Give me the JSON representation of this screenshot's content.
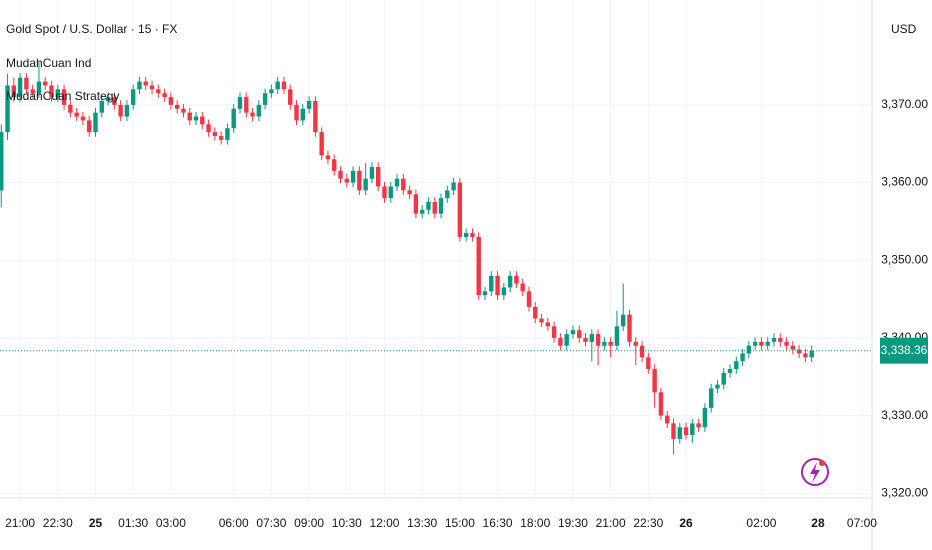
{
  "chart_data": {
    "type": "candlestick",
    "title": "Gold Spot / U.S. Dollar · 15 · FX",
    "indicators": [
      "MudahCuan Ind",
      "MudahCuan Strategy"
    ],
    "currency": "USD",
    "up_color": "#089981",
    "down_color": "#f23645",
    "ylim": [
      3319.4,
      3383.5
    ],
    "yticks": [
      {
        "value": 3320,
        "label": "3,320.00"
      },
      {
        "value": 3330,
        "label": "3,330.00"
      },
      {
        "value": 3340,
        "label": "3,340.00"
      },
      {
        "value": 3350,
        "label": "3,350.00"
      },
      {
        "value": 3360,
        "label": "3,360.00"
      },
      {
        "value": 3370,
        "label": "3,370.00"
      }
    ],
    "xlim": [
      -0.2,
      138.6
    ],
    "xticks": [
      {
        "value": 3,
        "label": "21:00"
      },
      {
        "value": 9,
        "label": "22:30"
      },
      {
        "value": 15,
        "label": "25"
      },
      {
        "value": 21,
        "label": "01:30"
      },
      {
        "value": 27,
        "label": "03:00"
      },
      {
        "value": 37,
        "label": "06:00"
      },
      {
        "value": 43,
        "label": "07:30"
      },
      {
        "value": 49,
        "label": "09:00"
      },
      {
        "value": 55,
        "label": "10:30"
      },
      {
        "value": 61,
        "label": "12:00"
      },
      {
        "value": 67,
        "label": "13:30"
      },
      {
        "value": 73,
        "label": "15:00"
      },
      {
        "value": 79,
        "label": "16:30"
      },
      {
        "value": 85,
        "label": "18:00"
      },
      {
        "value": 91,
        "label": "19:30"
      },
      {
        "value": 97,
        "label": "21:00"
      },
      {
        "value": 103,
        "label": "22:30"
      },
      {
        "value": 109,
        "label": "26"
      },
      {
        "value": 121,
        "label": "02:00"
      },
      {
        "value": 130,
        "label": "28"
      },
      {
        "value": 137,
        "label": "07:00"
      }
    ],
    "last_price": {
      "value": 3338.36,
      "label": "3,338.36"
    },
    "ohlc": [
      [
        3359.0,
        3367.5,
        3356.8,
        3366.5
      ],
      [
        3366.5,
        3374.0,
        3365.5,
        3372.5
      ],
      [
        3372.5,
        3373.5,
        3370.4,
        3371.0
      ],
      [
        3371.0,
        3374.1,
        3370.4,
        3373.5
      ],
      [
        3373.5,
        3374.1,
        3371.4,
        3372.0
      ],
      [
        3372.0,
        3372.6,
        3370.9,
        3371.5
      ],
      [
        3371.5,
        3375.5,
        3370.9,
        3373.0
      ],
      [
        3373.0,
        3373.6,
        3371.9,
        3372.5
      ],
      [
        3372.5,
        3373.1,
        3370.4,
        3371.0
      ],
      [
        3371.0,
        3372.6,
        3370.4,
        3372.0
      ],
      [
        3372.0,
        3372.6,
        3369.4,
        3370.0
      ],
      [
        3370.0,
        3370.6,
        3368.4,
        3369.0
      ],
      [
        3369.0,
        3369.6,
        3367.9,
        3368.5
      ],
      [
        3368.5,
        3369.1,
        3367.4,
        3368.0
      ],
      [
        3368.0,
        3368.6,
        3365.9,
        3366.5
      ],
      [
        3366.5,
        3369.6,
        3365.9,
        3369.0
      ],
      [
        3369.0,
        3371.1,
        3368.4,
        3370.5
      ],
      [
        3370.5,
        3371.6,
        3369.9,
        3371.0
      ],
      [
        3371.0,
        3371.6,
        3369.4,
        3370.0
      ],
      [
        3370.0,
        3370.6,
        3367.9,
        3368.5
      ],
      [
        3368.5,
        3370.6,
        3367.9,
        3370.0
      ],
      [
        3370.0,
        3372.6,
        3369.4,
        3372.0
      ],
      [
        3372.0,
        3373.6,
        3371.4,
        3373.0
      ],
      [
        3373.0,
        3373.6,
        3371.9,
        3372.5
      ],
      [
        3372.5,
        3373.1,
        3371.4,
        3372.0
      ],
      [
        3372.0,
        3372.6,
        3370.9,
        3371.5
      ],
      [
        3371.5,
        3372.1,
        3370.4,
        3371.0
      ],
      [
        3371.0,
        3371.6,
        3369.4,
        3370.0
      ],
      [
        3370.0,
        3370.6,
        3368.9,
        3369.5
      ],
      [
        3369.5,
        3370.1,
        3368.4,
        3369.0
      ],
      [
        3369.0,
        3369.6,
        3367.4,
        3368.0
      ],
      [
        3368.0,
        3369.1,
        3367.4,
        3368.5
      ],
      [
        3368.5,
        3369.1,
        3366.9,
        3367.5
      ],
      [
        3367.5,
        3368.1,
        3365.9,
        3366.5
      ],
      [
        3366.5,
        3367.1,
        3365.4,
        3366.0
      ],
      [
        3366.0,
        3366.6,
        3364.9,
        3365.5
      ],
      [
        3365.5,
        3367.6,
        3364.9,
        3367.0
      ],
      [
        3367.0,
        3370.1,
        3366.4,
        3369.5
      ],
      [
        3369.5,
        3371.6,
        3368.9,
        3371.0
      ],
      [
        3371.0,
        3371.6,
        3368.4,
        3369.0
      ],
      [
        3369.0,
        3369.6,
        3367.9,
        3368.5
      ],
      [
        3368.5,
        3370.6,
        3367.9,
        3370.0
      ],
      [
        3370.0,
        3372.1,
        3369.4,
        3371.5
      ],
      [
        3371.5,
        3372.6,
        3370.9,
        3372.0
      ],
      [
        3372.0,
        3373.6,
        3371.4,
        3373.0
      ],
      [
        3373.0,
        3373.6,
        3371.4,
        3372.0
      ],
      [
        3372.0,
        3372.6,
        3369.4,
        3370.0
      ],
      [
        3370.0,
        3370.6,
        3367.4,
        3368.0
      ],
      [
        3368.0,
        3370.1,
        3367.4,
        3369.5
      ],
      [
        3369.5,
        3371.1,
        3368.9,
        3370.5
      ],
      [
        3370.5,
        3371.1,
        3365.9,
        3366.5
      ],
      [
        3366.5,
        3367.1,
        3362.9,
        3363.5
      ],
      [
        3363.5,
        3364.1,
        3362.4,
        3363.0
      ],
      [
        3363.0,
        3363.6,
        3360.9,
        3361.5
      ],
      [
        3361.5,
        3362.1,
        3359.9,
        3360.5
      ],
      [
        3360.5,
        3361.1,
        3359.4,
        3360.0
      ],
      [
        3360.0,
        3362.1,
        3359.4,
        3361.5
      ],
      [
        3361.5,
        3362.1,
        3358.4,
        3359.0
      ],
      [
        3359.0,
        3362.5,
        3358.4,
        3360.5
      ],
      [
        3360.5,
        3362.6,
        3359.9,
        3362.0
      ],
      [
        3362.0,
        3362.6,
        3358.9,
        3359.5
      ],
      [
        3359.5,
        3360.1,
        3357.4,
        3358.0
      ],
      [
        3358.0,
        3360.1,
        3357.4,
        3359.5
      ],
      [
        3359.5,
        3361.1,
        3358.9,
        3360.5
      ],
      [
        3360.5,
        3361.1,
        3358.4,
        3359.0
      ],
      [
        3359.0,
        3359.6,
        3357.9,
        3358.5
      ],
      [
        3358.5,
        3359.1,
        3355.4,
        3356.0
      ],
      [
        3356.0,
        3357.1,
        3355.4,
        3356.5
      ],
      [
        3356.5,
        3358.1,
        3355.9,
        3357.5
      ],
      [
        3357.5,
        3358.1,
        3355.4,
        3356.0
      ],
      [
        3356.0,
        3358.6,
        3355.4,
        3358.0
      ],
      [
        3358.0,
        3359.6,
        3357.4,
        3359.0
      ],
      [
        3359.0,
        3360.6,
        3358.4,
        3360.0
      ],
      [
        3360.0,
        3360.6,
        3352.4,
        3353.0
      ],
      [
        3353.0,
        3354.1,
        3352.4,
        3353.5
      ],
      [
        3353.5,
        3354.1,
        3352.4,
        3353.0
      ],
      [
        3353.0,
        3353.6,
        3344.9,
        3345.5
      ],
      [
        3345.5,
        3346.6,
        3344.9,
        3346.0
      ],
      [
        3346.0,
        3348.6,
        3345.4,
        3348.0
      ],
      [
        3348.0,
        3348.6,
        3344.9,
        3345.5
      ],
      [
        3345.5,
        3347.1,
        3344.9,
        3346.5
      ],
      [
        3346.5,
        3348.6,
        3345.9,
        3348.0
      ],
      [
        3348.0,
        3348.6,
        3346.4,
        3347.0
      ],
      [
        3347.0,
        3347.6,
        3345.4,
        3346.0
      ],
      [
        3346.0,
        3346.6,
        3343.4,
        3344.0
      ],
      [
        3344.0,
        3344.6,
        3341.9,
        3342.5
      ],
      [
        3342.5,
        3343.1,
        3341.4,
        3342.0
      ],
      [
        3342.0,
        3342.6,
        3340.9,
        3341.5
      ],
      [
        3341.5,
        3342.1,
        3339.4,
        3340.0
      ],
      [
        3340.0,
        3340.6,
        3338.4,
        3339.0
      ],
      [
        3339.0,
        3341.1,
        3338.4,
        3340.5
      ],
      [
        3340.5,
        3341.6,
        3339.9,
        3341.0
      ],
      [
        3341.0,
        3341.6,
        3339.4,
        3340.0
      ],
      [
        3340.0,
        3340.6,
        3338.9,
        3339.5
      ],
      [
        3339.5,
        3341.1,
        3337.0,
        3340.5
      ],
      [
        3340.5,
        3341.1,
        3336.5,
        3339.0
      ],
      [
        3339.0,
        3340.1,
        3338.4,
        3339.5
      ],
      [
        3339.5,
        3340.1,
        3337.5,
        3339.0
      ],
      [
        3339.0,
        3343.5,
        3338.4,
        3341.5
      ],
      [
        3341.5,
        3347.0,
        3340.9,
        3343.0
      ],
      [
        3343.0,
        3343.6,
        3338.9,
        3339.5
      ],
      [
        3339.5,
        3340.1,
        3336.5,
        3339.0
      ],
      [
        3339.0,
        3339.6,
        3336.9,
        3337.5
      ],
      [
        3337.5,
        3338.1,
        3335.4,
        3336.0
      ],
      [
        3336.0,
        3336.6,
        3331.0,
        3333.0
      ],
      [
        3333.0,
        3333.6,
        3329.4,
        3330.0
      ],
      [
        3330.0,
        3330.6,
        3328.4,
        3329.0
      ],
      [
        3329.0,
        3329.6,
        3325.0,
        3327.0
      ],
      [
        3327.0,
        3329.1,
        3326.4,
        3328.5
      ],
      [
        3328.5,
        3329.1,
        3326.9,
        3327.5
      ],
      [
        3327.5,
        3329.6,
        3326.5,
        3329.0
      ],
      [
        3329.0,
        3329.6,
        3327.9,
        3328.5
      ],
      [
        3328.5,
        3331.6,
        3327.9,
        3331.0
      ],
      [
        3331.0,
        3334.1,
        3330.4,
        3333.5
      ],
      [
        3333.5,
        3334.6,
        3332.9,
        3334.0
      ],
      [
        3334.0,
        3336.1,
        3333.4,
        3335.5
      ],
      [
        3335.5,
        3336.6,
        3334.9,
        3336.0
      ],
      [
        3336.0,
        3337.6,
        3335.4,
        3337.0
      ],
      [
        3337.0,
        3338.6,
        3336.4,
        3338.0
      ],
      [
        3338.0,
        3339.6,
        3337.4,
        3339.0
      ],
      [
        3339.0,
        3340.1,
        3338.4,
        3339.5
      ],
      [
        3339.5,
        3340.1,
        3338.4,
        3339.0
      ],
      [
        3339.0,
        3340.1,
        3338.4,
        3339.5
      ],
      [
        3339.5,
        3340.6,
        3338.9,
        3340.0
      ],
      [
        3340.0,
        3340.6,
        3338.9,
        3339.5
      ],
      [
        3339.5,
        3340.1,
        3338.4,
        3339.0
      ],
      [
        3339.0,
        3339.6,
        3337.9,
        3338.5
      ],
      [
        3338.5,
        3339.1,
        3337.4,
        3338.0
      ],
      [
        3338.0,
        3338.6,
        3336.9,
        3337.5
      ],
      [
        3337.5,
        3339.0,
        3336.9,
        3338.36
      ]
    ]
  }
}
